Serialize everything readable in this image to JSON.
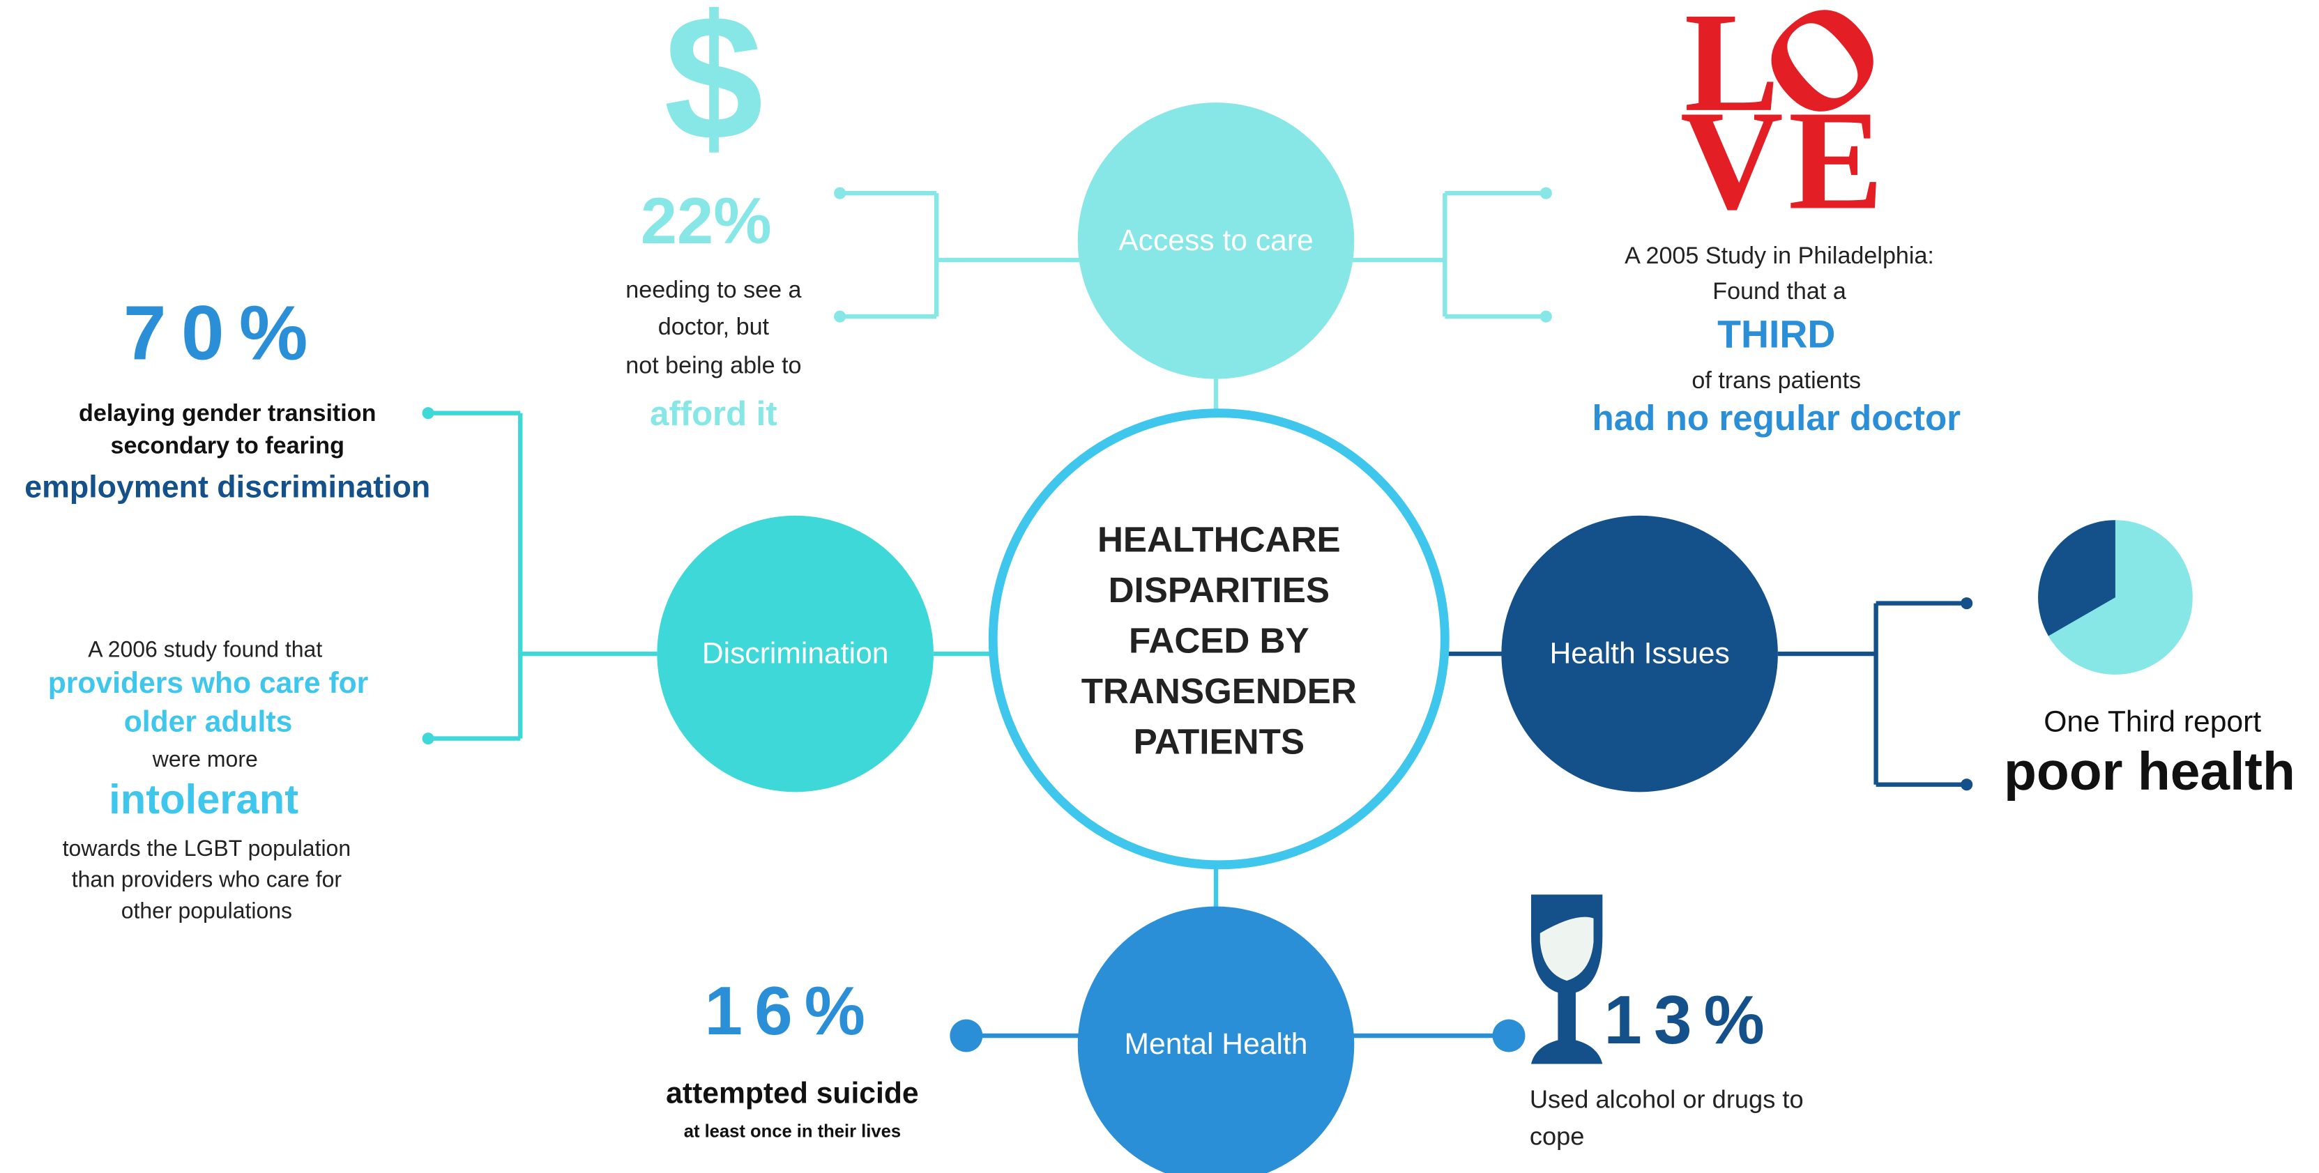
{
  "center": {
    "title": [
      "HEALTHCARE",
      "DISPARITIES",
      "FACED BY",
      "TRANSGENDER",
      "PATIENTS"
    ]
  },
  "nodes": [
    {
      "label": "Access to care"
    },
    {
      "label": "Discrimination"
    },
    {
      "label": "Health Issues"
    },
    {
      "label": "Mental Health"
    }
  ],
  "access_cost": {
    "icon": "$",
    "stat": "22%",
    "lines": [
      "needing to see a",
      "doctor, but",
      "not being able to"
    ],
    "highlight": "afford it"
  },
  "access_doctor": {
    "logo": [
      "L",
      "O",
      "V",
      "E"
    ],
    "lines": [
      "A 2005 Study in Philadelphia:",
      "Found that a"
    ],
    "highlight": "THIRD",
    "middle": "of trans patients",
    "conclusion": "had no regular doctor"
  },
  "discrimination_employment": {
    "stat": "70%",
    "lines": [
      "delaying gender transition",
      "secondary to fearing"
    ],
    "highlight": "employment discrimination"
  },
  "discrimination_providers": {
    "intro": "A 2006 study found that",
    "highlight": [
      "providers who care for",
      "older adults"
    ],
    "middle": "were more",
    "emphasis": "intolerant",
    "lines": [
      "towards the LGBT population",
      "than providers who care for",
      "other populations"
    ]
  },
  "health_issues": {
    "lead": "One Third report",
    "highlight": "poor health"
  },
  "mental_suicide": {
    "stat": "16%",
    "highlight": "attempted suicide",
    "note": "at least once in their lives"
  },
  "mental_substance": {
    "stat": "13%",
    "lines": [
      "Used alcohol or drugs to",
      "cope"
    ]
  }
}
